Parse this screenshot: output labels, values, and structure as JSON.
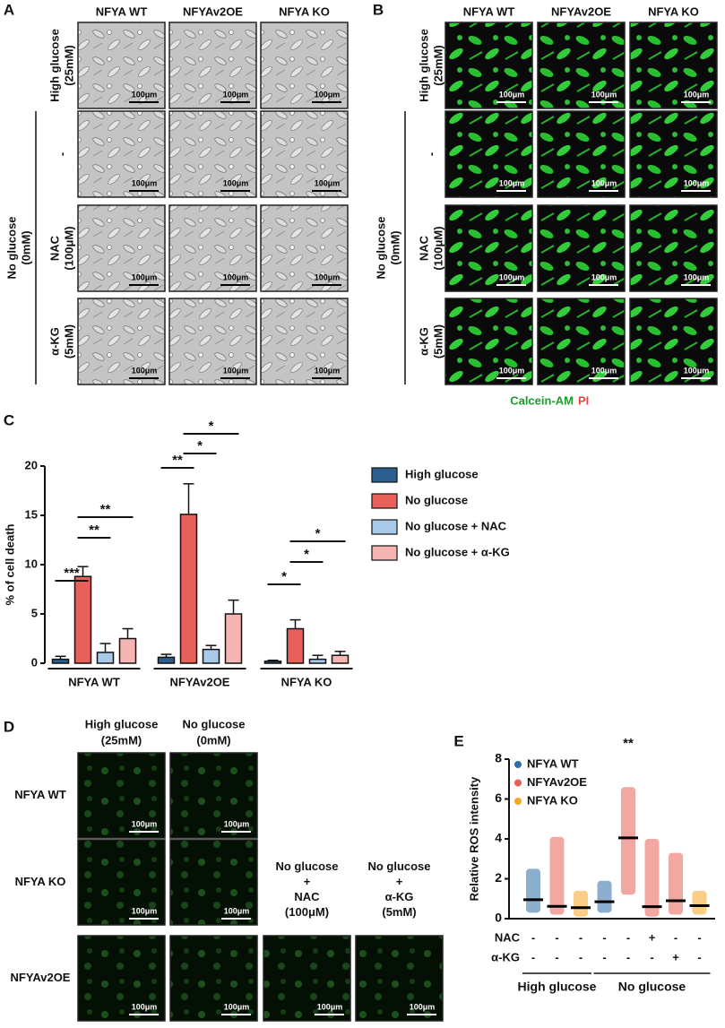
{
  "panel_a": {
    "label": "A",
    "columns": [
      "NFYA WT",
      "NFYAv2OE",
      "NFYA KO"
    ],
    "rows": [
      [
        "High glucose",
        "(25mM)"
      ],
      [
        "-"
      ],
      [
        "NAC",
        "(100μM)"
      ],
      [
        "α-KG",
        "(5mM)"
      ]
    ],
    "group_label": [
      "No glucose",
      "(0mM)"
    ],
    "scale_bar": "100μm"
  },
  "panel_b": {
    "label": "B",
    "columns": [
      "NFYA WT",
      "NFYAv2OE",
      "NFYA KO"
    ],
    "rows": [
      [
        "High glucose",
        "(25mM)"
      ],
      [
        "-"
      ],
      [
        "NAC",
        "(100μM)"
      ],
      [
        "α-KG",
        "(5mM)"
      ]
    ],
    "group_label": [
      "No glucose",
      "(0mM)"
    ],
    "scale_bar": "100μm",
    "stain": [
      "Calcein-AM",
      "PI"
    ]
  },
  "panel_c": {
    "label": "C"
  },
  "panel_d": {
    "label": "D",
    "columns": [
      [
        "High glucose",
        "(25mM)"
      ],
      [
        "No glucose",
        "(0mM)"
      ],
      [
        "No glucose",
        "+",
        "NAC",
        "(100μM)"
      ],
      [
        "No glucose",
        "+",
        "α-KG",
        "(5mM)"
      ]
    ],
    "rows": [
      "NFYA WT",
      "NFYA KO",
      "NFYAv2OE"
    ],
    "scale_bar": "100μm"
  },
  "panel_e": {
    "label": "E"
  },
  "chart_data": [
    {
      "type": "bar",
      "y_label": "% of cell death",
      "categories": [
        "NFYA WT",
        "NFYAv2OE",
        "NFYA KO"
      ],
      "series": [
        {
          "name": "High glucose",
          "color": "#2c5f8e",
          "values": [
            0.4,
            0.6,
            0.2
          ],
          "errors": [
            0.3,
            0.3,
            0.1
          ]
        },
        {
          "name": "No glucose",
          "color": "#e8605a",
          "values": [
            8.8,
            15.1,
            3.5
          ],
          "errors": [
            1.0,
            3.1,
            0.9
          ]
        },
        {
          "name": "No glucose + NAC",
          "color": "#a9c9e8",
          "values": [
            1.1,
            1.4,
            0.4
          ],
          "errors": [
            0.9,
            0.4,
            0.4
          ]
        },
        {
          "name": "No glucose + α-KG",
          "color": "#f5b5b2",
          "values": [
            2.5,
            5.0,
            0.8
          ],
          "errors": [
            1.0,
            1.4,
            0.4
          ]
        }
      ],
      "ylim": [
        0,
        20
      ],
      "yticks": [
        0,
        5,
        10,
        15,
        20
      ],
      "annotations": [
        "***",
        "**",
        "**",
        "**",
        "*",
        "*",
        "*",
        "*",
        "*"
      ]
    },
    {
      "type": "scatter",
      "y_label": "Relative ROS intensity",
      "series": [
        {
          "name": "NFYA WT",
          "color": "#2f6ea8",
          "values": [
            0.95,
            null,
            null,
            0.85,
            null,
            null,
            null,
            null
          ],
          "ranges": [
            [
              0.3,
              2.5
            ],
            null,
            null,
            [
              0.3,
              1.9
            ],
            null,
            null,
            null,
            null
          ]
        },
        {
          "name": "NFYAv2OE",
          "color": "#ea5f55",
          "values": [
            null,
            0.62,
            null,
            null,
            4.05,
            0.6,
            0.9,
            null
          ],
          "ranges": [
            null,
            [
              0.2,
              4.1
            ],
            null,
            null,
            [
              1.2,
              6.6
            ],
            [
              0.1,
              4.0
            ],
            [
              0.2,
              3.3
            ],
            null
          ]
        },
        {
          "name": "NFYA KO",
          "color": "#f5a623",
          "values": [
            null,
            null,
            0.55,
            null,
            null,
            null,
            null,
            0.65
          ],
          "ranges": [
            null,
            null,
            [
              0.1,
              1.4
            ],
            null,
            null,
            null,
            null,
            [
              0.2,
              1.4
            ]
          ]
        }
      ],
      "ylim": [
        0,
        8
      ],
      "yticks": [
        0,
        2,
        4,
        6,
        8
      ],
      "treatments": [
        {
          "label": "NAC",
          "signs": [
            "-",
            "-",
            "-",
            "-",
            "-",
            "+",
            "-",
            "-"
          ]
        },
        {
          "label": "α-KG",
          "signs": [
            "-",
            "-",
            "-",
            "-",
            "-",
            "-",
            "+",
            "-"
          ]
        }
      ],
      "groups": [
        "High glucose",
        "No glucose"
      ],
      "annotations": [
        "**"
      ]
    }
  ]
}
